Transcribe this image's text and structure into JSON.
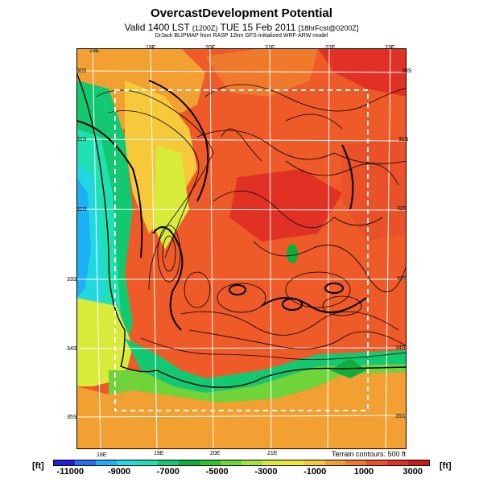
{
  "title": "OvercastDevelopment Potential",
  "subtitle": {
    "valid": "Valid 1400 LST",
    "zulu": "(1200Z)",
    "date": "TUE 15 Feb 2011",
    "forecast": "[18hrFcst@0200Z]"
  },
  "credit": "DrJack BLIPMAP from RASP 12km GFS-initialized WRF-ARW model",
  "terrain_note": "Terrain contours: 500 ft",
  "units": {
    "left": "[ft]",
    "right": "[ft]"
  },
  "longitude_labels": [
    "18E",
    "19E",
    "20E",
    "21E",
    "22E",
    "23E"
  ],
  "latitude_labels": [
    "30S",
    "31S",
    "32S",
    "33S",
    "34S",
    "35S"
  ],
  "colorbar": {
    "colors": [
      "#1f1fdd",
      "#2a6cf2",
      "#1cb0f6",
      "#22d8e0",
      "#1ee0b0",
      "#12c870",
      "#0fae3c",
      "#2fc42c",
      "#6ed43a",
      "#a8e03c",
      "#d8ea3a",
      "#f2e53a",
      "#f6c93a",
      "#f3a033",
      "#f07a2c",
      "#ea5128",
      "#e03124",
      "#c81a1a"
    ],
    "tick_labels": [
      "-11000",
      "-9000",
      "-7000",
      "-5000",
      "-3000",
      "-1000",
      "1000",
      "3000"
    ]
  }
}
